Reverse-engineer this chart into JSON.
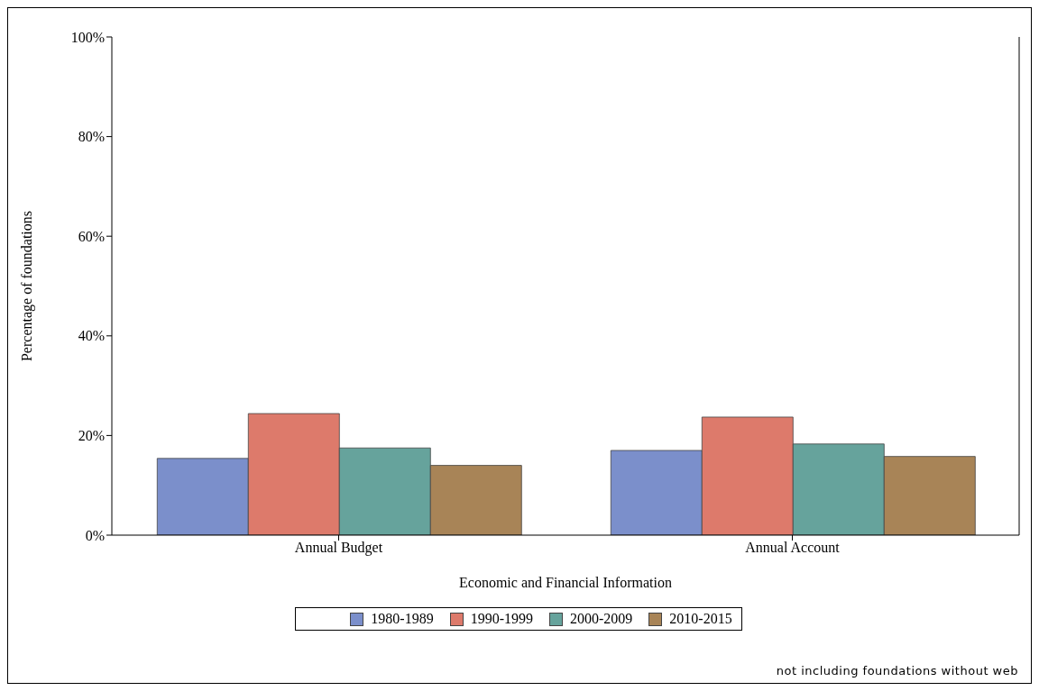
{
  "chart_data": {
    "type": "bar",
    "xlabel": "Economic and Financial Information",
    "ylabel": "Percentage of foundations",
    "categories": [
      "Annual Budget",
      "Annual Account"
    ],
    "series": [
      {
        "name": "1980-1989",
        "color": "#7b8fcb",
        "values": [
          15.4,
          17.0
        ]
      },
      {
        "name": "1990-1999",
        "color": "#dd7a6b",
        "values": [
          24.4,
          23.7
        ]
      },
      {
        "name": "2000-2009",
        "color": "#66a39c",
        "values": [
          17.5,
          18.3
        ]
      },
      {
        "name": "2010-2015",
        "color": "#a88457",
        "values": [
          14.0,
          15.8
        ]
      }
    ],
    "ylim": [
      0,
      100
    ],
    "yticks": [
      {
        "value": 0,
        "label": "0%"
      },
      {
        "value": 20,
        "label": "20%"
      },
      {
        "value": 40,
        "label": "40%"
      },
      {
        "value": 60,
        "label": "60%"
      },
      {
        "value": 80,
        "label": "80%"
      },
      {
        "value": 100,
        "label": "100%"
      }
    ],
    "grid": false,
    "legend": "bottom",
    "annotations": [
      "not including foundations without web"
    ]
  }
}
